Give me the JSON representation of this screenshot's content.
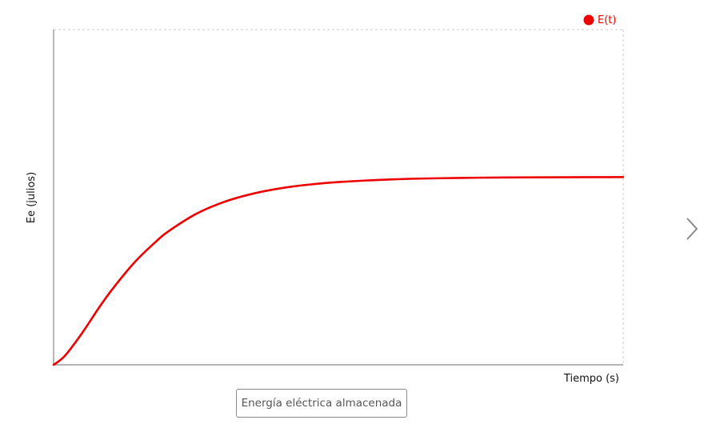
{
  "chart_data": {
    "type": "line",
    "title": "",
    "xlabel": "Tiempo (s)",
    "ylabel": "Ee (julios)",
    "legend_position": "top-right",
    "grid": false,
    "series": [
      {
        "name": "E(t)",
        "color": "#ee0000",
        "x": [
          0,
          0.02,
          0.05,
          0.08,
          0.1,
          0.13,
          0.15,
          0.18,
          0.2,
          0.25,
          0.3,
          0.35,
          0.4,
          0.45,
          0.5,
          0.6,
          0.7,
          0.8,
          0.9,
          1.0
        ],
        "values": [
          0.0,
          0.0272,
          0.0947,
          0.1712,
          0.2186,
          0.2822,
          0.3198,
          0.368,
          0.3964,
          0.45,
          0.4863,
          0.5106,
          0.527,
          0.5379,
          0.5453,
          0.5535,
          0.5572,
          0.5589,
          0.5596,
          0.56
        ]
      }
    ],
    "xlim": [
      0,
      1
    ],
    "ylim": [
      0,
      1.0
    ]
  },
  "caption_button": {
    "label": "Energía eléctrica almacenada"
  },
  "navigation": {
    "next_icon": "chevron-right-icon"
  }
}
